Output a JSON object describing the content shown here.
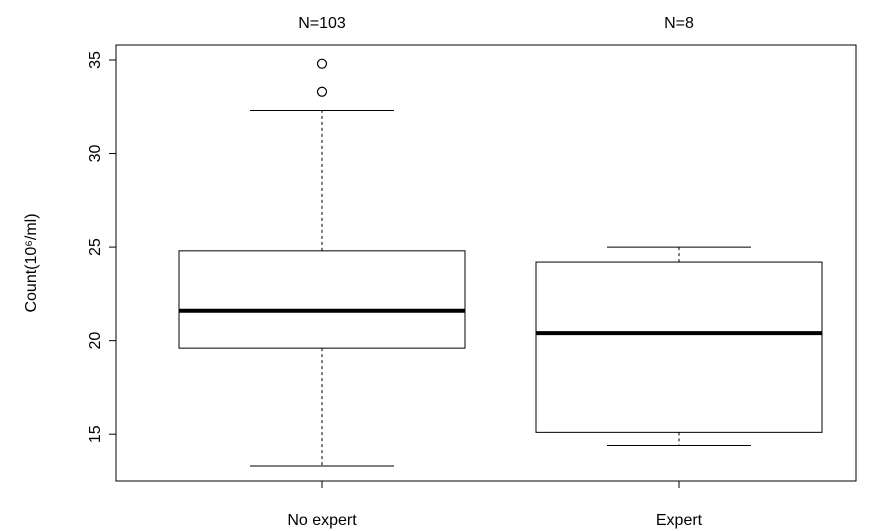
{
  "chart_data": {
    "type": "boxplot",
    "ylabel": "Count(10⁶/ml)",
    "ylim": [
      12.5,
      35.8
    ],
    "yticks": [
      15,
      20,
      25,
      30,
      35
    ],
    "grid": false,
    "categories": [
      "No expert",
      "Expert"
    ],
    "n_labels": [
      "N=103",
      "N=8"
    ],
    "boxes": [
      {
        "name": "No expert",
        "min": 13.3,
        "q1": 19.6,
        "median": 21.6,
        "q3": 24.8,
        "max": 32.3,
        "outliers": [
          33.3,
          34.8
        ]
      },
      {
        "name": "Expert",
        "min": 14.4,
        "q1": 15.1,
        "median": 20.4,
        "q3": 24.2,
        "max": 25.0,
        "outliers": []
      }
    ]
  }
}
